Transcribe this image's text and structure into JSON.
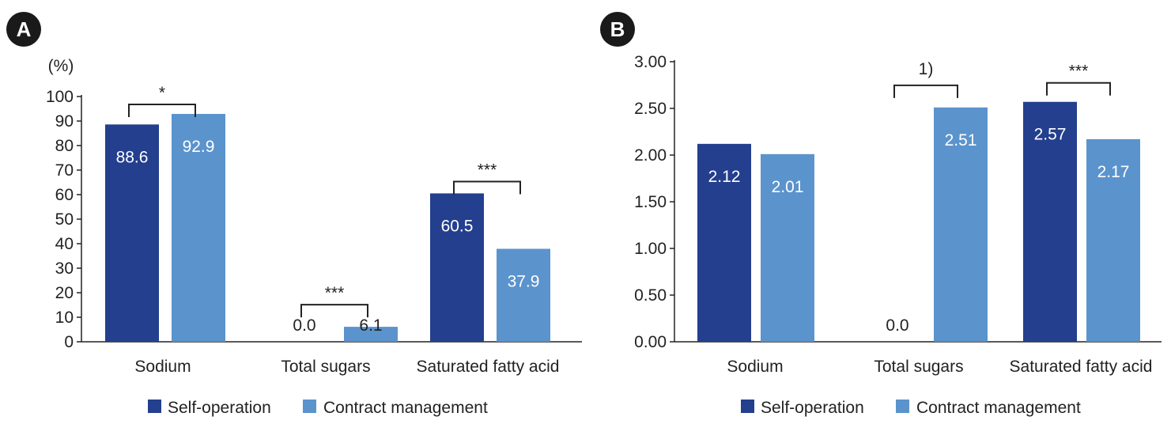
{
  "colors": {
    "self_operation": "#233f8e",
    "contract_management": "#5b93cd",
    "axis": "#222222",
    "badge": "#1a1a1a"
  },
  "legend": [
    "Self-operation",
    "Contract management"
  ],
  "chart_data": [
    {
      "panel": "A",
      "type": "bar",
      "unit_label": "(%)",
      "categories": [
        "Sodium",
        "Total sugars",
        "Saturated fatty acid"
      ],
      "series": [
        {
          "name": "Self-operation",
          "values": [
            88.6,
            0.0,
            60.5
          ],
          "labels": [
            "88.6",
            "0.0",
            "60.5"
          ]
        },
        {
          "name": "Contract management",
          "values": [
            92.9,
            6.1,
            37.9
          ],
          "labels": [
            "92.9",
            "6.1",
            "37.9"
          ]
        }
      ],
      "ylim": [
        0,
        100
      ],
      "yticks": [
        "0",
        "10",
        "20",
        "30",
        "40",
        "50",
        "60",
        "70",
        "80",
        "90",
        "100"
      ],
      "significance": [
        "*",
        "***",
        "***"
      ],
      "grid": false,
      "legend_position": "bottom"
    },
    {
      "panel": "B",
      "type": "bar",
      "unit_label": "",
      "categories": [
        "Sodium",
        "Total sugars",
        "Saturated fatty acid"
      ],
      "series": [
        {
          "name": "Self-operation",
          "values": [
            2.12,
            0.0,
            2.57
          ],
          "labels": [
            "2.12",
            "0.0",
            "2.57"
          ]
        },
        {
          "name": "Contract management",
          "values": [
            2.01,
            2.51,
            2.17
          ],
          "labels": [
            "2.01",
            "2.51",
            "2.17"
          ]
        }
      ],
      "ylim": [
        0,
        3
      ],
      "yticks": [
        "0.00",
        "0.50",
        "1.00",
        "1.50",
        "2.00",
        "2.50",
        "3.00"
      ],
      "significance": [
        "",
        "1)",
        "***"
      ],
      "grid": false,
      "legend_position": "bottom"
    }
  ]
}
